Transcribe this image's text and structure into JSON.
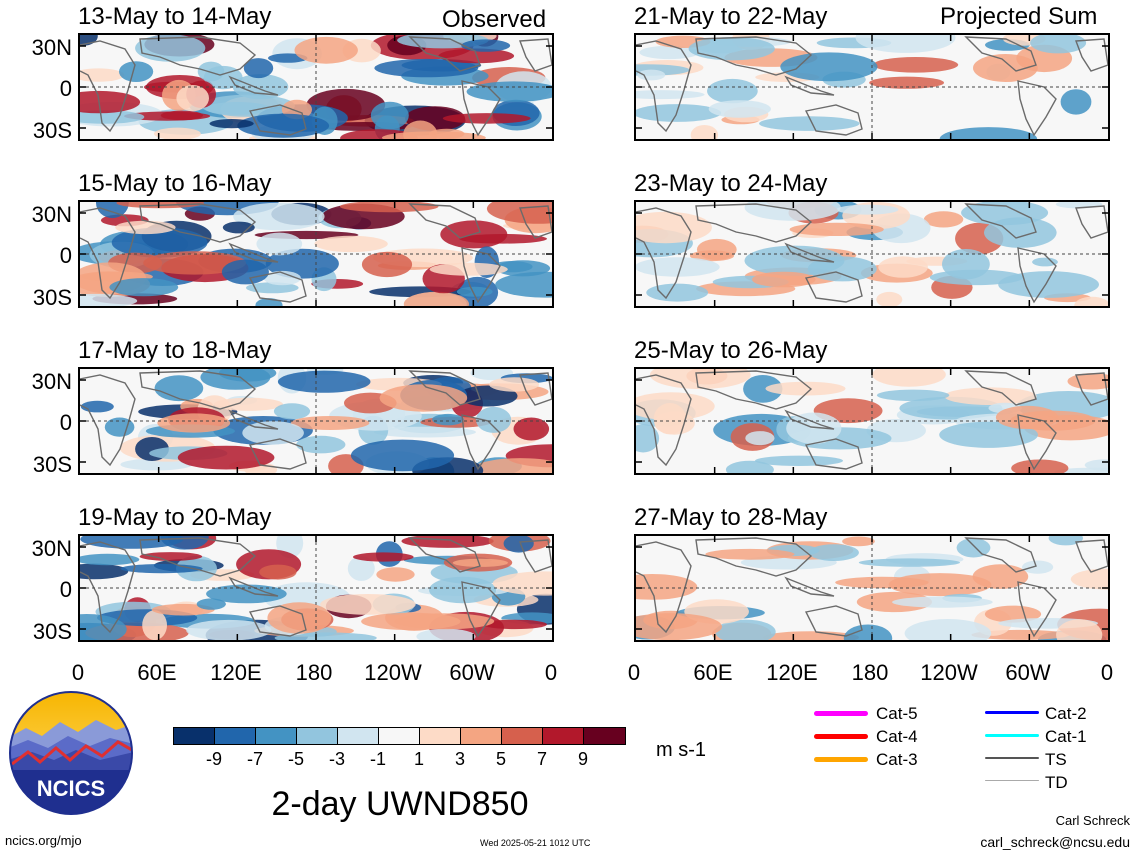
{
  "header": {
    "observed_label": "Observed",
    "projected_label": "Projected Sum"
  },
  "panels_left": [
    {
      "title": "13-May to 14-May"
    },
    {
      "title": "15-May to 16-May"
    },
    {
      "title": "17-May to 18-May"
    },
    {
      "title": "19-May to 20-May"
    }
  ],
  "panels_right": [
    {
      "title": "21-May to 22-May"
    },
    {
      "title": "23-May to 24-May"
    },
    {
      "title": "25-May to 26-May"
    },
    {
      "title": "27-May to 28-May"
    }
  ],
  "lat_ticks": [
    "30N",
    "0",
    "30S"
  ],
  "lon_ticks": [
    "0",
    "60E",
    "120E",
    "180",
    "120W",
    "60W",
    "0"
  ],
  "colorbar": {
    "colors": [
      "#08306b",
      "#2166ac",
      "#4393c3",
      "#92c5de",
      "#d1e5f0",
      "#f7f7f7",
      "#fddbc7",
      "#f4a582",
      "#d6604d",
      "#b2182b",
      "#67001f"
    ],
    "labels": [
      "-9",
      "-7",
      "-5",
      "-3",
      "-1",
      "1",
      "3",
      "5",
      "7",
      "9"
    ],
    "units": "m s-1"
  },
  "main_title": "2-day UWND850",
  "logo": {
    "text": "NCICS"
  },
  "legend": [
    {
      "label": "Cat-5",
      "color": "#ff00ff"
    },
    {
      "label": "Cat-4",
      "color": "#ff0000"
    },
    {
      "label": "Cat-3",
      "color": "#ffa500"
    },
    {
      "label": "Cat-2",
      "color": "#0000ff"
    },
    {
      "label": "Cat-1",
      "color": "#00ffff"
    },
    {
      "label": "TS",
      "color": "#555555"
    },
    {
      "label": "TD",
      "color": "#aaaaaa"
    }
  ],
  "footer": {
    "url": "ncics.org/mjo",
    "timestamp": "Wed 2025-05-21 1012 UTC",
    "author": "Carl Schreck",
    "email": "carl_schreck@ncsu.edu"
  }
}
